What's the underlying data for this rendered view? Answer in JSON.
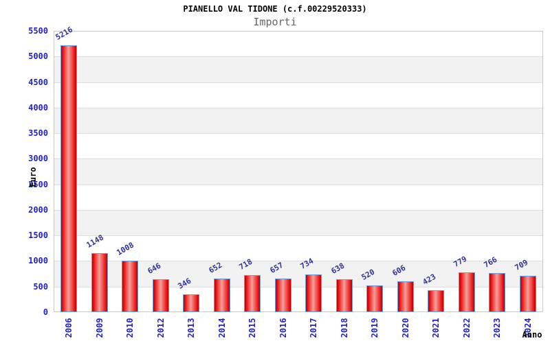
{
  "title": "PIANELLO VAL TIDONE (c.f.00229520333)",
  "subtitle": "Importi",
  "chart_data": {
    "type": "bar",
    "title": "PIANELLO VAL TIDONE (c.f.00229520333)",
    "subtitle": "Importi",
    "xlabel": "Anno",
    "ylabel": "Euro",
    "categories": [
      "2006",
      "2009",
      "2010",
      "2012",
      "2013",
      "2014",
      "2015",
      "2016",
      "2017",
      "2018",
      "2019",
      "2020",
      "2021",
      "2022",
      "2023",
      "2024"
    ],
    "values": [
      5216,
      1148,
      1008,
      646,
      346,
      652,
      718,
      657,
      734,
      638,
      520,
      606,
      423,
      779,
      766,
      709
    ],
    "ylim": [
      0,
      5500
    ],
    "ytick_step": 500,
    "ytick_labels": [
      "0",
      "500",
      "1000",
      "1500",
      "2000",
      "2500",
      "3000",
      "3500",
      "4000",
      "4500",
      "5000",
      "5500"
    ],
    "grid": "horizontal gridlines with alternating white/gray bands",
    "legend": "none",
    "bar_value_labels_shown": true
  },
  "colors": {
    "bar_fill_dark": "#b50000",
    "bar_fill_mid": "#ee2222",
    "bar_fill_light": "#f4a09c",
    "bar_border": "#6fa3e0",
    "axis_tick_label": "#2222cc",
    "bar_value_label": "#333399",
    "band_gray": "#f2f2f2",
    "gridline": "#dddddd",
    "plot_border": "#c9c9c9",
    "title_color": "#000000",
    "subtitle_color": "#666666"
  }
}
